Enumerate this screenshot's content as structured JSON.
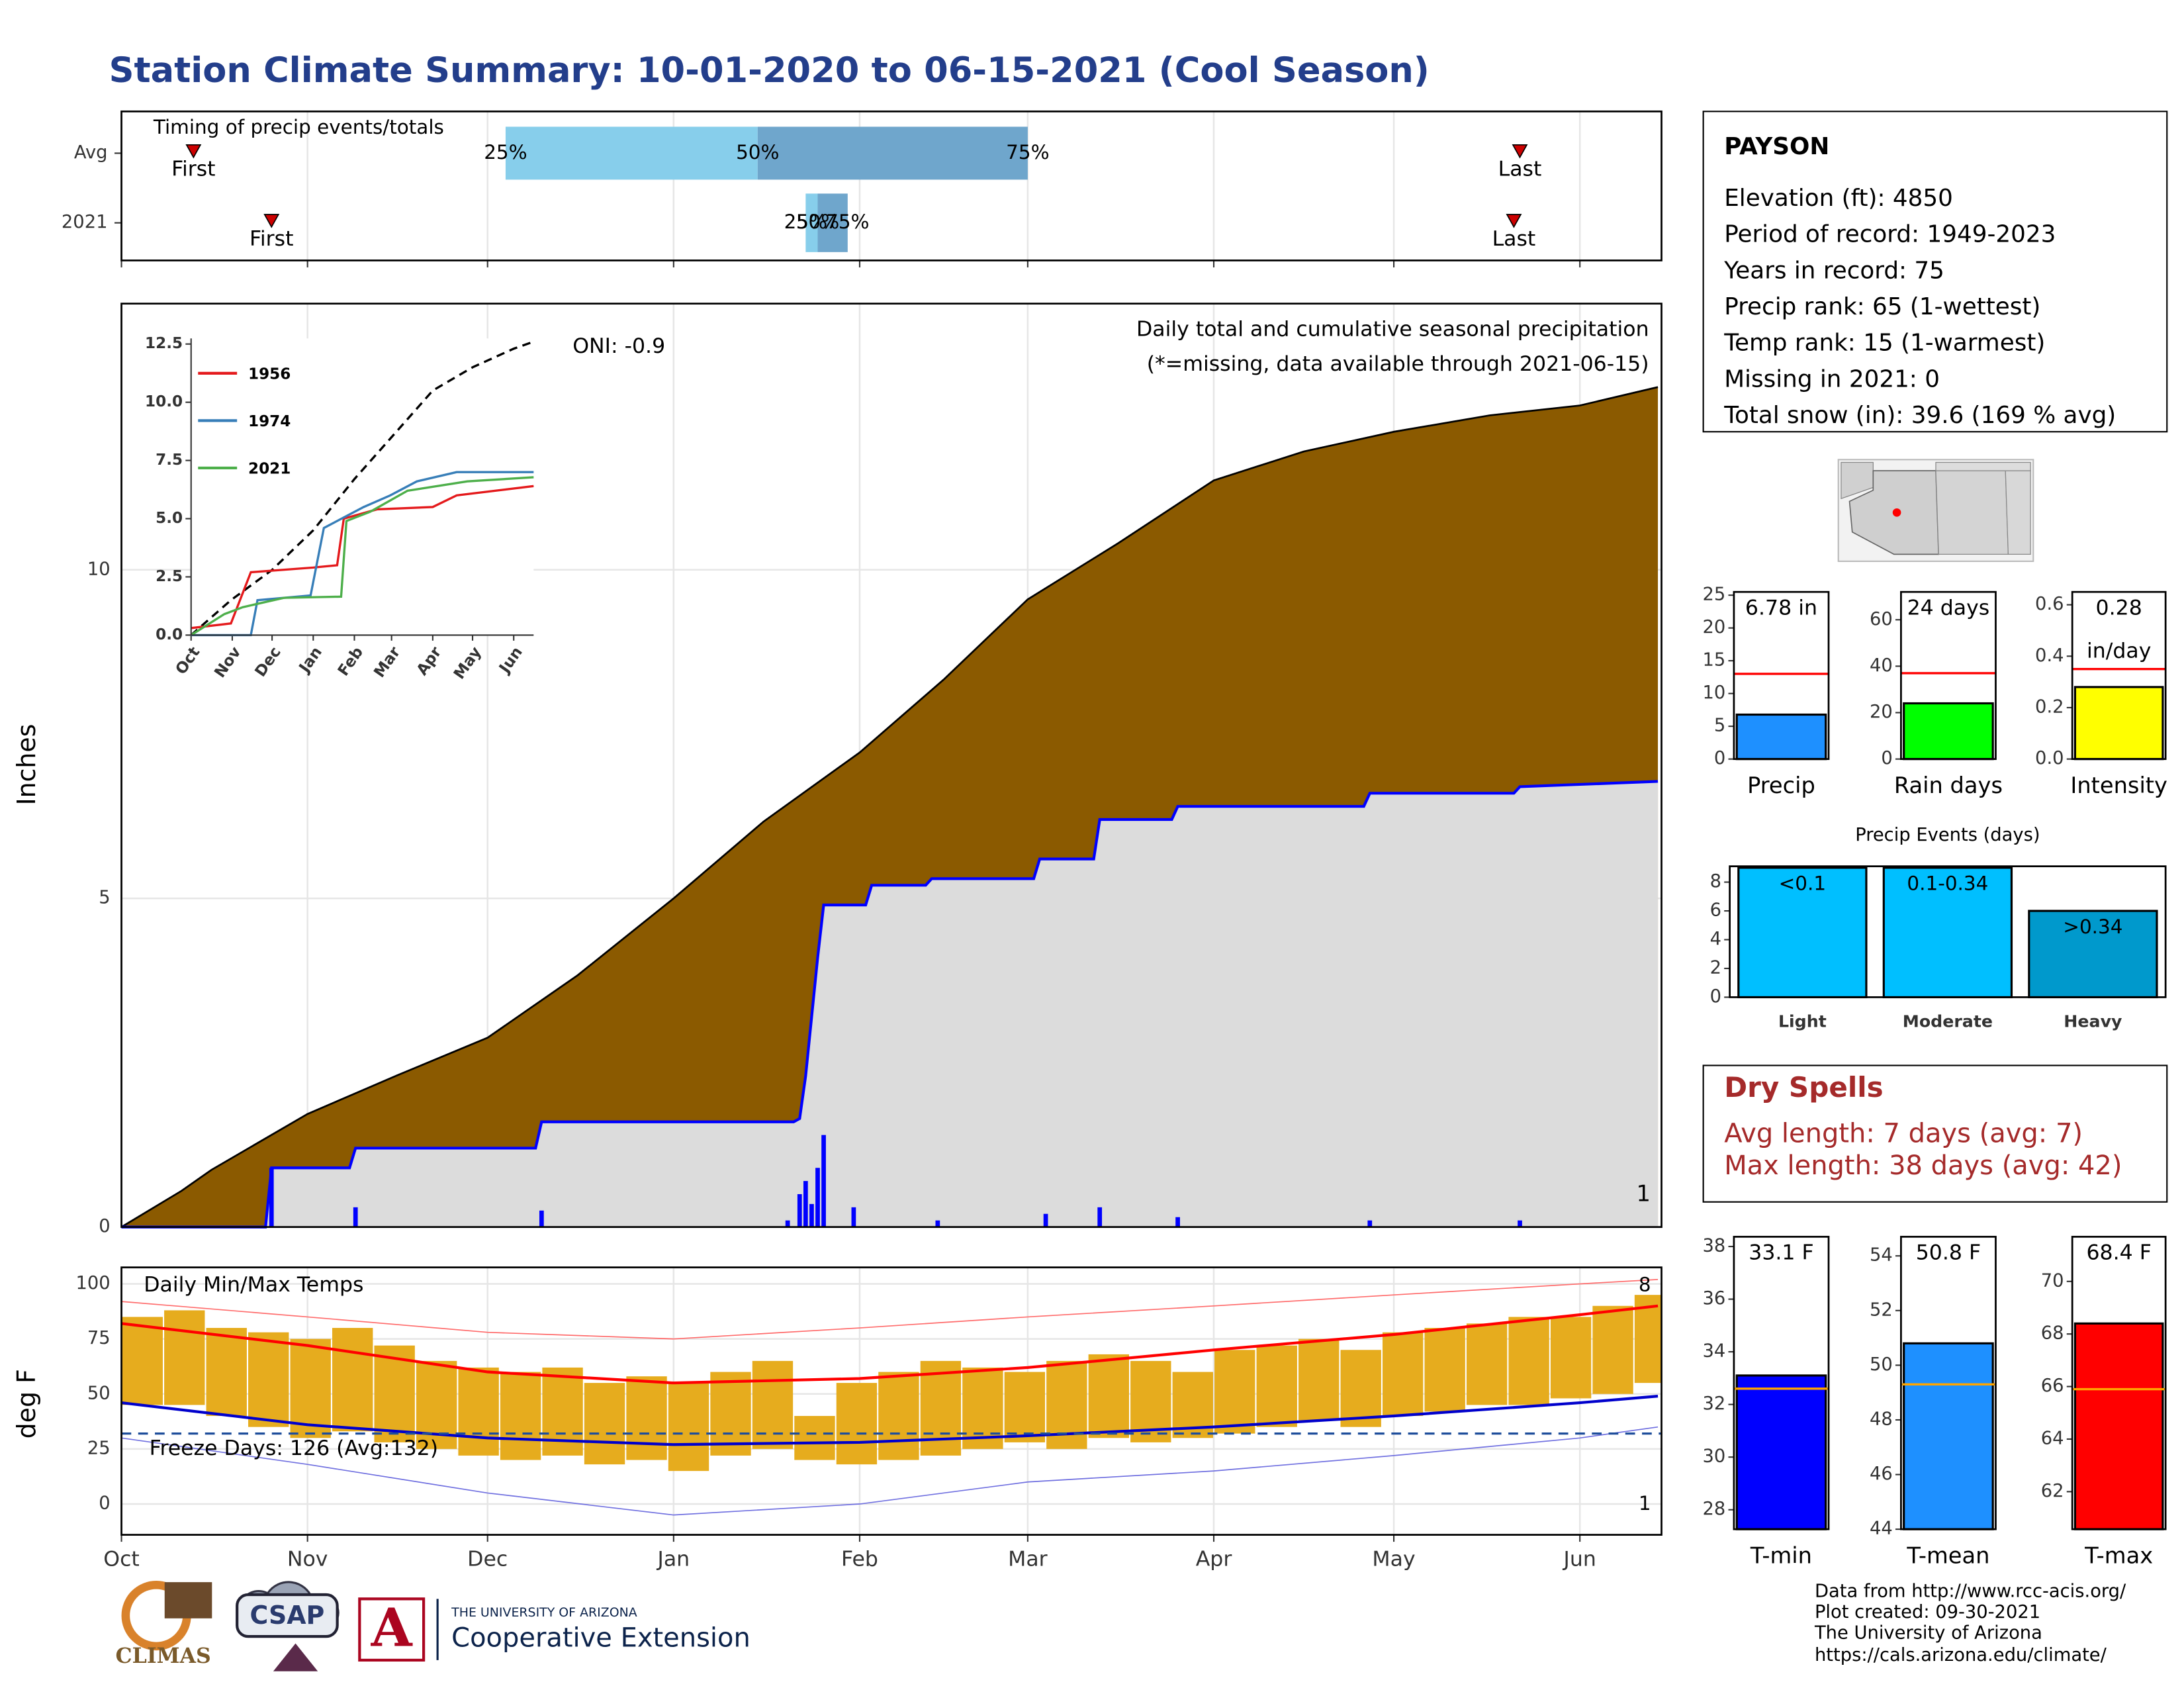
{
  "title": "Station Climate Summary: 10-01-2020 to 06-15-2021 (Cool Season)",
  "chart_data": [
    {
      "type": "timing",
      "title": "Timing of precip events/totals",
      "categories": [
        "Avg",
        "2021"
      ],
      "xlim": [
        0,
        256.6
      ],
      "xticks": [
        0,
        31,
        61,
        92,
        123,
        151,
        182,
        212,
        243
      ],
      "grid": true,
      "first": [
        12,
        25
      ],
      "last": [
        233,
        232
      ],
      "first_label": "First",
      "last_label": "Last",
      "quartiles": [
        [
          64,
          106,
          151
        ],
        [
          114,
          116,
          121
        ]
      ],
      "quartile_labels": [
        "25%",
        "50%",
        "75%"
      ],
      "colors": [
        "#87ceeb",
        "#6fa6cc"
      ],
      "marker_color": "#cc0000"
    },
    {
      "type": "step",
      "ylabel": "Inches",
      "xlim": [
        0,
        256.6
      ],
      "ylim": [
        0,
        14.05
      ],
      "yticks": [
        0,
        5,
        10
      ],
      "xticks": [
        0,
        31,
        61,
        92,
        123,
        151,
        182,
        212,
        243
      ],
      "grid": true,
      "annotations": [
        {
          "text": "ONI: -0.9",
          "color": "#000000"
        },
        {
          "text": "Daily total and cumulative seasonal precipitation",
          "color": "#000000"
        },
        {
          "text": "(*=missing, data available through 2021-06-15)",
          "color": "#ff0000"
        },
        {
          "text": "1",
          "color": "#ffa500"
        }
      ],
      "series": [
        {
          "style": "area",
          "color": "#000000",
          "fill": "#8b5a00",
          "x": [
            0,
            10,
            15,
            31,
            46,
            61,
            76,
            92,
            107,
            123,
            137,
            151,
            166,
            182,
            197,
            212,
            228,
            243,
            256
          ],
          "values": [
            0,
            0.55,
            0.87,
            1.72,
            2.31,
            2.88,
            3.83,
            5.0,
            6.17,
            7.22,
            8.33,
            9.55,
            10.4,
            11.36,
            11.8,
            12.1,
            12.35,
            12.5,
            12.78
          ]
        },
        {
          "style": "area",
          "color": "#0000ff",
          "fill": "#dcdcdc",
          "x": [
            0,
            24,
            25,
            38,
            39,
            69,
            70,
            112,
            113,
            114,
            115,
            116,
            117,
            124,
            125,
            134,
            135,
            152,
            153,
            162,
            163,
            175,
            176,
            207,
            208,
            232,
            233,
            256
          ],
          "values": [
            0,
            0,
            0.9,
            0.9,
            1.2,
            1.2,
            1.6,
            1.6,
            1.65,
            2.3,
            3.2,
            4.1,
            4.9,
            4.9,
            5.2,
            5.2,
            5.3,
            5.3,
            5.6,
            5.6,
            6.2,
            6.2,
            6.4,
            6.4,
            6.6,
            6.6,
            6.7,
            6.78
          ]
        },
        {
          "style": "bars",
          "color": "#0000ff",
          "x": [
            25,
            39,
            70,
            111,
            113,
            114,
            115,
            116,
            117,
            122,
            136,
            154,
            163,
            176,
            208,
            233
          ],
          "values": [
            0.9,
            0.3,
            0.25,
            0.1,
            0.5,
            0.7,
            0.35,
            0.9,
            1.4,
            0.3,
            0.1,
            0.2,
            0.3,
            0.15,
            0.1,
            0.1
          ]
        }
      ]
    },
    {
      "type": "line",
      "xlim": [
        0,
        258
      ],
      "ylim": [
        0,
        12.74
      ],
      "yticks": [
        {
          "value": 0,
          "label": "0.0"
        },
        2.5,
        {
          "value": 5,
          "label": "5.0"
        },
        7.5,
        {
          "value": 10,
          "label": "10.0"
        },
        12.5
      ],
      "xticks": [
        {
          "value": 0,
          "label": "Oct"
        },
        {
          "value": 31,
          "label": "Nov"
        },
        {
          "value": 61,
          "label": "Dec"
        },
        {
          "value": 92,
          "label": "Jan"
        },
        {
          "value": 123,
          "label": "Feb"
        },
        {
          "value": 151,
          "label": "Mar"
        },
        {
          "value": 182,
          "label": "Apr"
        },
        {
          "value": 212,
          "label": "May"
        },
        {
          "value": 243,
          "label": "Jun"
        }
      ],
      "series": [
        {
          "color": "#000000",
          "style": "dashed",
          "x": [
            0,
            30,
            61,
            92,
            123,
            151,
            182,
            212,
            243,
            258
          ],
          "values": [
            0,
            1.5,
            2.8,
            4.5,
            6.7,
            8.5,
            10.5,
            11.5,
            12.3,
            12.6
          ]
        },
        {
          "name": "1956",
          "color": "#e41a1c",
          "x": [
            0,
            30,
            45,
            92,
            110,
            115,
            140,
            182,
            200,
            258
          ],
          "values": [
            0.3,
            0.5,
            2.7,
            2.9,
            3.0,
            5.0,
            5.4,
            5.5,
            6.0,
            6.4
          ]
        },
        {
          "name": "1974",
          "color": "#377eb8",
          "x": [
            0,
            45,
            50,
            90,
            100,
            130,
            150,
            170,
            200,
            258
          ],
          "values": [
            0,
            0,
            1.5,
            1.7,
            4.6,
            5.5,
            6.0,
            6.6,
            7.0,
            7.0
          ]
        },
        {
          "name": "2021",
          "color": "#4daf4a",
          "x": [
            0,
            25,
            39,
            70,
            113,
            117,
            135,
            163,
            208,
            258
          ],
          "values": [
            0,
            0.9,
            1.2,
            1.6,
            1.65,
            4.9,
            5.3,
            6.2,
            6.6,
            6.78
          ]
        }
      ]
    },
    {
      "type": "temperature",
      "title": "Daily Min/Max Temps",
      "ylabel": "deg F",
      "xlim": [
        0,
        256.6
      ],
      "ylim": [
        -14,
        107.5
      ],
      "yticks": [
        0,
        25,
        50,
        75,
        100
      ],
      "xticks": [
        {
          "value": 0,
          "label": "Oct"
        },
        {
          "value": 31,
          "label": "Nov"
        },
        {
          "value": 61,
          "label": "Dec"
        },
        {
          "value": 92,
          "label": "Jan"
        },
        {
          "value": 123,
          "label": "Feb"
        },
        {
          "value": 151,
          "label": "Mar"
        },
        {
          "value": 182,
          "label": "Apr"
        },
        {
          "value": 212,
          "label": "May"
        },
        {
          "value": 243,
          "label": "Jun"
        }
      ],
      "grid": true,
      "annotations": [
        {
          "text": "8",
          "color": "#ff0000"
        },
        {
          "text": "1",
          "color": "#0000cc"
        }
      ],
      "freeze": {
        "value": 32,
        "label": "Freeze Days: 126 (Avg:132)",
        "color": "#1f4e9b"
      },
      "series": [
        {
          "style": "range",
          "color": "#e6ac1e",
          "width": 7,
          "x": [
            0,
            7,
            14,
            21,
            28,
            35,
            42,
            49,
            56,
            63,
            70,
            77,
            84,
            91,
            98,
            105,
            112,
            119,
            126,
            133,
            140,
            147,
            154,
            161,
            168,
            175,
            182,
            189,
            196,
            203,
            210,
            217,
            224,
            231,
            238,
            245,
            252
          ],
          "high": [
            85,
            88,
            80,
            78,
            75,
            80,
            72,
            65,
            62,
            60,
            62,
            55,
            58,
            55,
            60,
            65,
            40,
            55,
            60,
            65,
            62,
            60,
            65,
            68,
            65,
            60,
            70,
            72,
            75,
            70,
            78,
            80,
            82,
            85,
            85,
            90,
            95
          ],
          "low": [
            45,
            45,
            40,
            35,
            30,
            33,
            28,
            25,
            22,
            20,
            22,
            18,
            20,
            15,
            22,
            25,
            20,
            18,
            20,
            22,
            25,
            28,
            25,
            30,
            28,
            30,
            32,
            35,
            38,
            35,
            40,
            42,
            45,
            45,
            48,
            50,
            55
          ]
        },
        {
          "style": "thin",
          "color": "#ff6b6b",
          "x": [
            0,
            31,
            61,
            92,
            123,
            151,
            182,
            212,
            243,
            256
          ],
          "values": [
            92,
            85,
            78,
            75,
            80,
            85,
            90,
            95,
            100,
            102
          ]
        },
        {
          "style": "thin",
          "color": "#7070e0",
          "x": [
            0,
            31,
            61,
            92,
            123,
            151,
            182,
            212,
            243,
            256
          ],
          "values": [
            30,
            18,
            5,
            -5,
            0,
            10,
            15,
            22,
            30,
            35
          ]
        },
        {
          "style": "line",
          "color": "#ff0000",
          "x": [
            0,
            31,
            61,
            92,
            123,
            151,
            182,
            212,
            243,
            256
          ],
          "values": [
            82,
            72,
            60,
            55,
            57,
            62,
            70,
            77,
            86,
            90
          ]
        },
        {
          "style": "line",
          "color": "#0000cc",
          "x": [
            0,
            31,
            61,
            92,
            123,
            151,
            182,
            212,
            243,
            256
          ],
          "values": [
            46,
            36,
            30,
            27,
            28,
            31,
            35,
            40,
            46,
            49
          ]
        }
      ]
    },
    {
      "type": "bar",
      "categories": [
        "Precip"
      ],
      "values": [
        6.78
      ],
      "value_labels": [
        "6.78 in"
      ],
      "avg": [
        13.0
      ],
      "avg_color": "#ff0000",
      "color": "#1e90ff",
      "ylim": [
        0,
        25.5
      ],
      "yticks": [
        0,
        5,
        10,
        15,
        20,
        25
      ]
    },
    {
      "type": "bar",
      "categories": [
        "Rain days"
      ],
      "values": [
        24
      ],
      "value_labels": [
        "24 days"
      ],
      "avg": [
        37
      ],
      "avg_color": "#ff0000",
      "color": "#00ff00",
      "ylim": [
        0,
        72
      ],
      "yticks": [
        0,
        20,
        40,
        60
      ]
    },
    {
      "type": "bar",
      "categories": [
        "Intensity"
      ],
      "values": [
        0.28
      ],
      "value_labels": [
        "0.28"
      ],
      "unit": "in/day",
      "avg": [
        0.35
      ],
      "avg_color": "#ff0000",
      "color": "#ffff00",
      "ylim": [
        0,
        0.65
      ],
      "yticks": [
        {
          "value": 0,
          "label": "0.0"
        },
        0.2,
        0.4,
        0.6
      ]
    },
    {
      "type": "bar",
      "title": "Precip Events (days)",
      "categories": [
        "Light",
        "Moderate",
        "Heavy"
      ],
      "values": [
        9,
        9,
        6
      ],
      "bin_labels": [
        "<0.1",
        "0.1-0.34",
        ">0.34"
      ],
      "colors": [
        "#00bfff",
        "#00bfff",
        "#0099cc"
      ],
      "ylim": [
        0,
        9.1
      ],
      "yticks": [
        0,
        2,
        4,
        6,
        8
      ]
    },
    {
      "type": "bar",
      "categories": [
        "T-min"
      ],
      "values": [
        33.1
      ],
      "value_labels": [
        "33.1 F"
      ],
      "avg": [
        32.6
      ],
      "avg_color": "#ffa500",
      "color": "#0000ff",
      "ylim": [
        27.26,
        38.37
      ],
      "yticks": [
        28,
        30,
        32,
        34,
        36,
        38
      ]
    },
    {
      "type": "bar",
      "categories": [
        "T-mean"
      ],
      "values": [
        50.8
      ],
      "value_labels": [
        "50.8 F"
      ],
      "avg": [
        49.3
      ],
      "avg_color": "#ffa500",
      "color": "#1e90ff",
      "ylim": [
        44,
        54.7
      ],
      "yticks": [
        44,
        46,
        48,
        50,
        52,
        54
      ]
    },
    {
      "type": "bar",
      "categories": [
        "T-max"
      ],
      "values": [
        68.4
      ],
      "value_labels": [
        "68.4 F"
      ],
      "avg": [
        65.9
      ],
      "avg_color": "#ffa500",
      "color": "#ff0000",
      "ylim": [
        60.57,
        71.7
      ],
      "yticks": [
        62,
        64,
        66,
        68,
        70
      ]
    }
  ],
  "station": {
    "name": "PAYSON",
    "lines": [
      "Elevation (ft): 4850",
      "Period of record: 1949-2023",
      "Years in record: 75",
      "Precip rank: 65 (1-wettest)",
      "Temp rank: 15 (1-warmest)",
      "Missing in 2021: 0",
      "Total snow (in): 39.6 (169 % avg)"
    ]
  },
  "dry_spells": {
    "title": "Dry Spells",
    "lines": [
      "Avg length: 7 days (avg: 7)",
      "Max length: 38 days (avg: 42)"
    ]
  },
  "footer": [
    "Data from http://www.rcc-acis.org/",
    "Plot created: 09-30-2021",
    "The University of Arizona",
    "https://cals.arizona.edu/climate/"
  ],
  "logos": {
    "climas": "CLIMAS",
    "csap": "CSAP",
    "ua_mark": "A",
    "ua_line1": "THE UNIVERSITY OF ARIZONA",
    "ua_line2": "Cooperative Extension"
  }
}
